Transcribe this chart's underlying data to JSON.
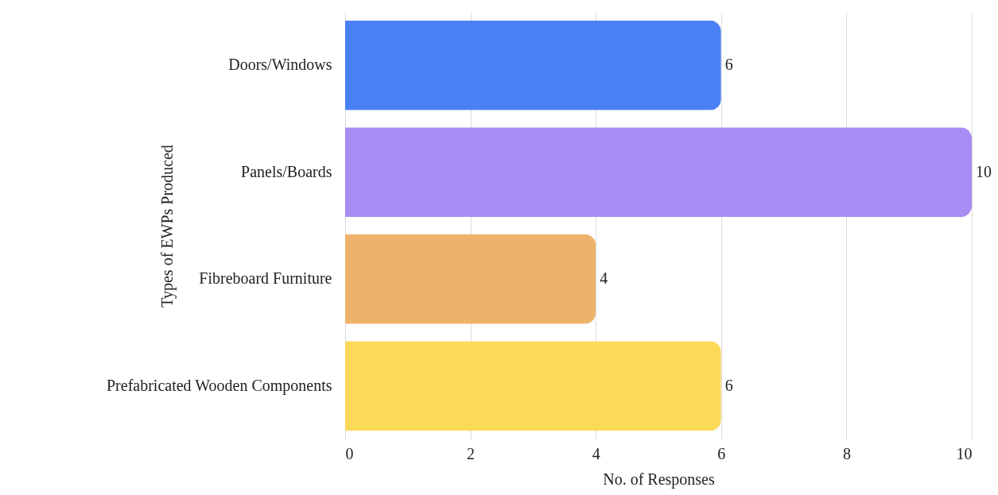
{
  "chart_data": {
    "type": "bar",
    "orientation": "horizontal",
    "xlabel": "No. of Responses",
    "ylabel": "Types of EWPs Produced",
    "categories": [
      "Doors/Windows",
      "Panels/Boards",
      "Fibreboard Furniture",
      "Prefabricated Wooden Components"
    ],
    "values": [
      6,
      10,
      4,
      6
    ],
    "colors": [
      "#4a80f5",
      "#a98cf4",
      "#eeb36a",
      "#fcd958"
    ],
    "xlim": [
      0,
      10
    ],
    "xticks": [
      0,
      2,
      4,
      6,
      8,
      10
    ],
    "grid": true,
    "data_labels": true
  }
}
